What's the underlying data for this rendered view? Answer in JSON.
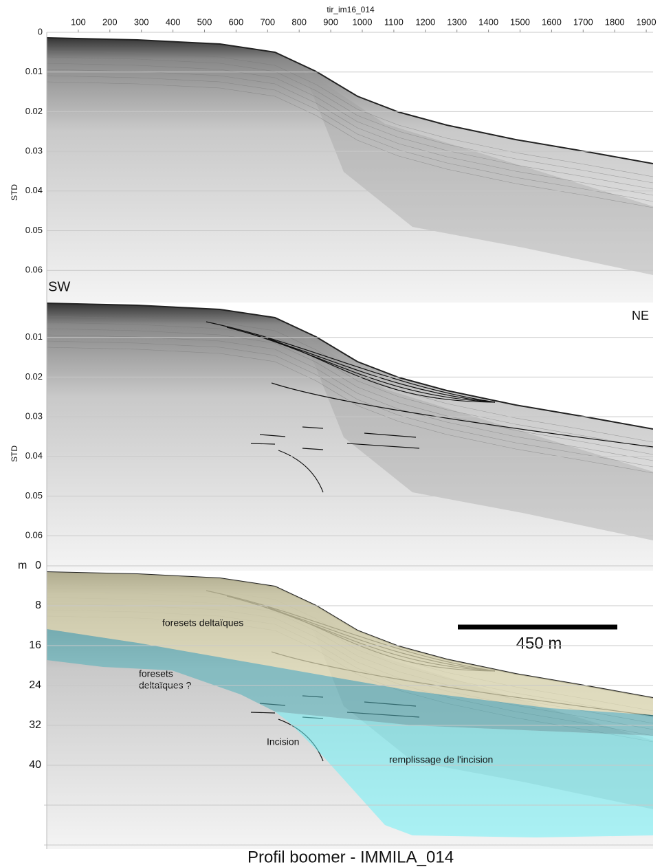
{
  "title": "Profil boomer - IMMILA_014",
  "top_axis": {
    "label": "tir_im16_014",
    "ticks": [
      100,
      200,
      300,
      400,
      500,
      600,
      700,
      800,
      900,
      1000,
      1100,
      1200,
      1300,
      1400,
      1500,
      1600,
      1700,
      1800,
      1900
    ]
  },
  "panels": [
    {
      "y_label": "STD",
      "yticks": [
        0,
        0.01,
        0.02,
        0.03,
        0.04,
        0.05,
        0.06
      ],
      "annotations": [
        "SW"
      ]
    },
    {
      "y_label": "STD",
      "yticks": [
        0.01,
        0.02,
        0.03,
        0.04,
        0.05,
        0.06
      ],
      "annotations": [
        "NE"
      ]
    },
    {
      "y_label": "m",
      "yticks": [
        0,
        8,
        16,
        24,
        32,
        40
      ],
      "annotations": [
        "foresets deltaïques",
        "foresets",
        "deltaïques  ?",
        "Incision",
        "remplissage de l'incision"
      ],
      "scale_bar": "450 m"
    }
  ]
}
